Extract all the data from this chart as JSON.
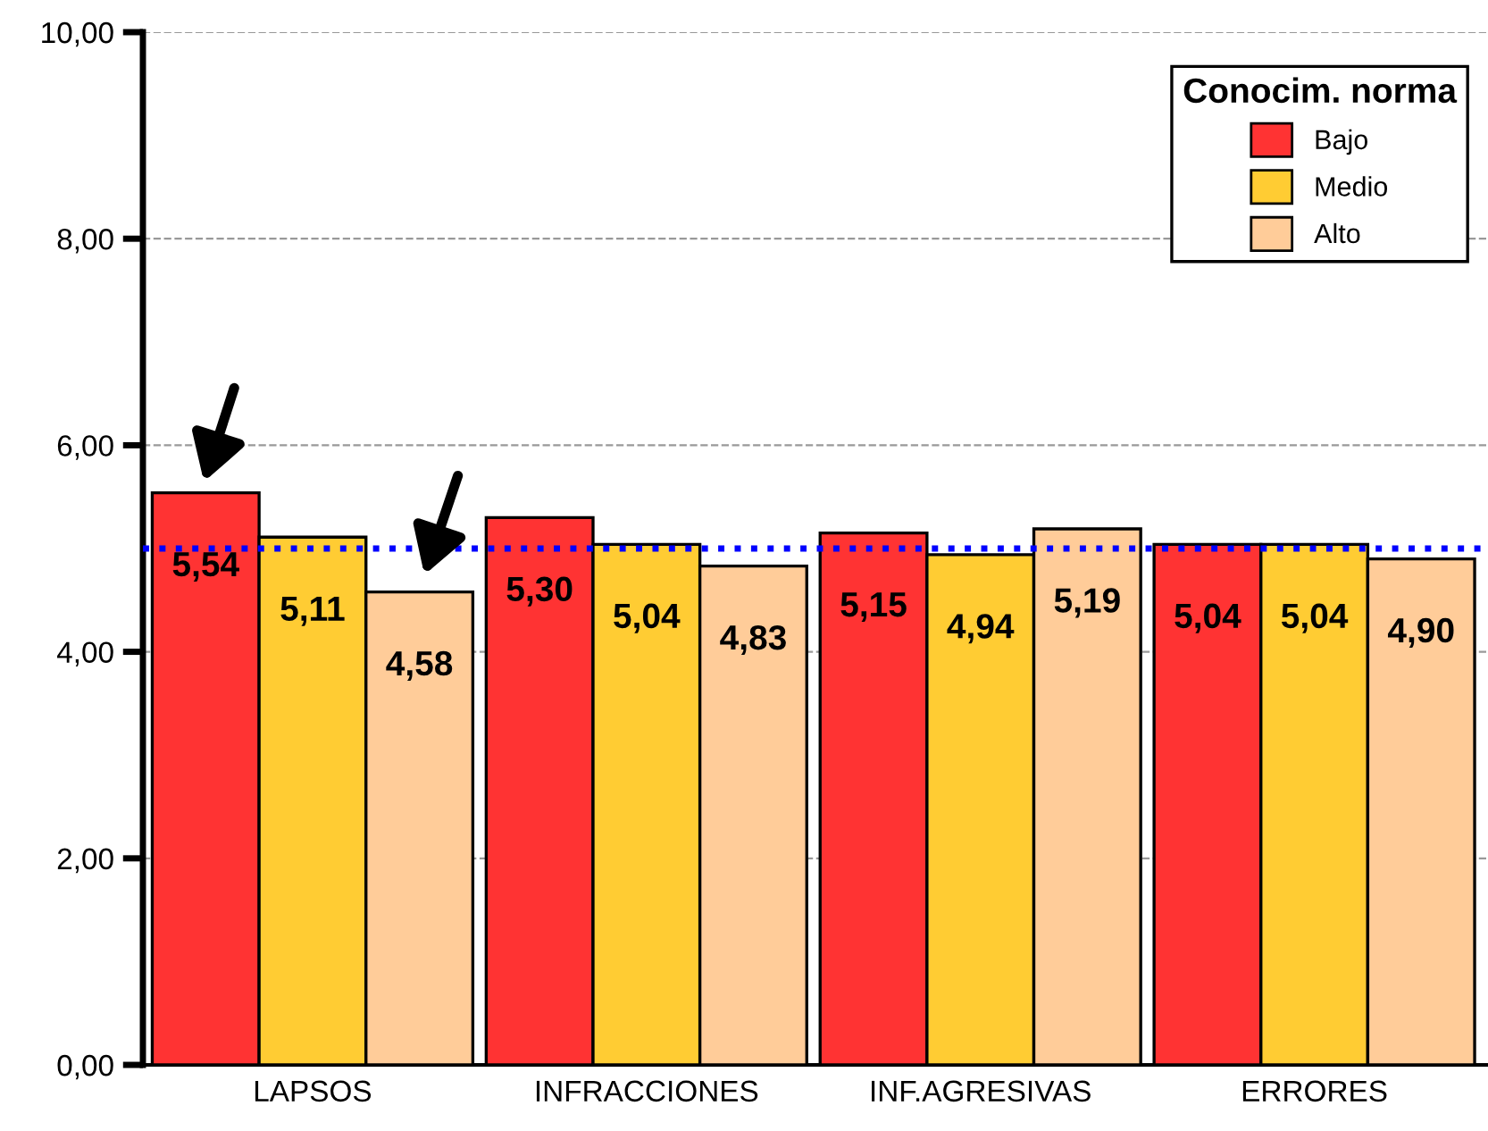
{
  "chart_data": {
    "type": "bar",
    "categories": [
      "LAPSOS",
      "INFRACCIONES",
      "INF.AGRESIVAS",
      "ERRORES"
    ],
    "legend_title": "Conocim. norma",
    "series": [
      {
        "name": "Bajo",
        "color": "#ff3333",
        "values": [
          5.54,
          5.3,
          5.15,
          5.04
        ],
        "value_labels": [
          "5,54",
          "5,30",
          "5,15",
          "5,04"
        ]
      },
      {
        "name": "Medio",
        "color": "#ffcc33",
        "values": [
          5.11,
          5.04,
          4.94,
          5.04
        ],
        "value_labels": [
          "5,11",
          "5,04",
          "4,94",
          "5,04"
        ]
      },
      {
        "name": "Alto",
        "color": "#ffcc99",
        "values": [
          4.58,
          4.83,
          5.19,
          4.9
        ],
        "value_labels": [
          "4,58",
          "4,83",
          "5,19",
          "4,90"
        ]
      }
    ],
    "ylim": [
      0,
      10
    ],
    "yticks": [
      {
        "value": 0,
        "label": "0,00"
      },
      {
        "value": 2,
        "label": "2,00"
      },
      {
        "value": 4,
        "label": "4,00"
      },
      {
        "value": 6,
        "label": "6,00"
      },
      {
        "value": 8,
        "label": "8,00"
      },
      {
        "value": 10,
        "label": "10,00"
      }
    ],
    "ref_lines": [
      {
        "axis": "y",
        "value": 5.0,
        "color": "#0000ff",
        "line_style": "dotted"
      }
    ],
    "grid": "y",
    "legend": "top right"
  }
}
